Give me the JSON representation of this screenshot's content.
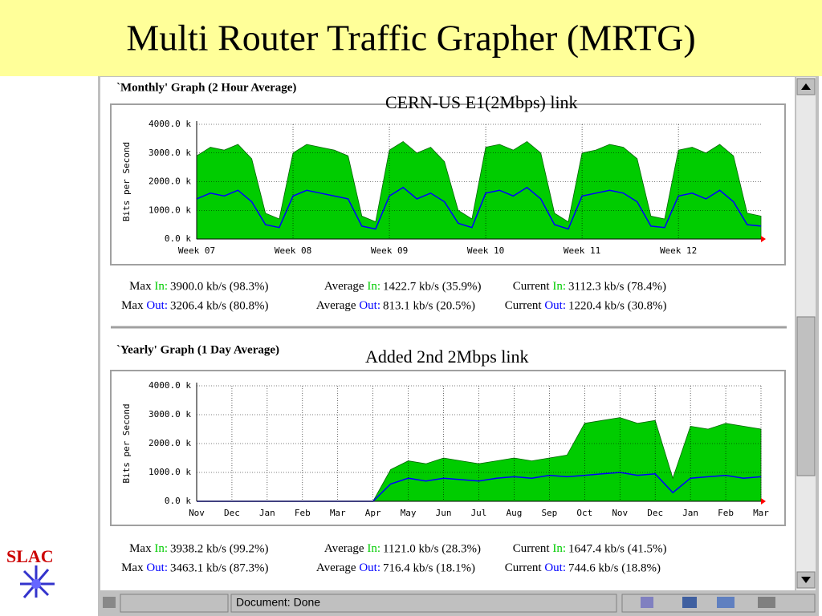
{
  "slide_title": "Multi Router Traffic Grapher (MRTG)",
  "status": "Document: Done",
  "logo": "SLAC",
  "chart_data": [
    {
      "type": "area",
      "title": "`Monthly' Graph (2 Hour Average)",
      "annotation": "CERN-US E1(2Mbps) link",
      "y_label": "Bits per Second",
      "categories": [
        "Week 07",
        null,
        null,
        null,
        null,
        null,
        null,
        "Week 08",
        null,
        null,
        null,
        null,
        null,
        null,
        "Week 09",
        null,
        null,
        null,
        null,
        null,
        null,
        "Week 10",
        null,
        null,
        null,
        null,
        null,
        null,
        "Week 11",
        null,
        null,
        null,
        null,
        null,
        null,
        "Week 12",
        null,
        null,
        null,
        null,
        null,
        null
      ],
      "series": [
        {
          "name": "In:",
          "color": "#00cc00",
          "style": "area",
          "values": [
            2900000,
            3200000,
            3100000,
            3300000,
            2800000,
            900000,
            700000,
            3000000,
            3300000,
            3200000,
            3100000,
            2900000,
            800000,
            600000,
            3100000,
            3400000,
            3000000,
            3200000,
            2700000,
            1000000,
            700000,
            3200000,
            3300000,
            3100000,
            3400000,
            3000000,
            900000,
            600000,
            3000000,
            3100000,
            3300000,
            3200000,
            2800000,
            800000,
            700000,
            3100000,
            3200000,
            3000000,
            3300000,
            2900000,
            900000,
            800000
          ]
        },
        {
          "name": "Out:",
          "color": "#0000ff",
          "style": "line",
          "values": [
            1400000,
            1600000,
            1500000,
            1700000,
            1300000,
            500000,
            400000,
            1500000,
            1700000,
            1600000,
            1500000,
            1400000,
            450000,
            350000,
            1500000,
            1800000,
            1400000,
            1600000,
            1300000,
            550000,
            400000,
            1600000,
            1700000,
            1500000,
            1800000,
            1400000,
            500000,
            350000,
            1500000,
            1600000,
            1700000,
            1600000,
            1300000,
            450000,
            400000,
            1500000,
            1600000,
            1400000,
            1700000,
            1300000,
            500000,
            450000
          ]
        }
      ],
      "ylim": [
        0,
        4000000
      ],
      "yticks": [
        {
          "value": 0,
          "label": "0.0 k"
        },
        {
          "value": 1000000,
          "label": "1000.0 k"
        },
        {
          "value": 2000000,
          "label": "2000.0 k"
        },
        {
          "value": 3000000,
          "label": "3000.0 k"
        },
        {
          "value": 4000000,
          "label": "4000.0 k"
        }
      ],
      "grid": true,
      "stats": [
        [
          {
            "label": "Max",
            "value": "3900.0 kb/s (98.3%)"
          },
          {
            "label": "Average",
            "value": "1422.7 kb/s (35.9%)"
          },
          {
            "label": "Current",
            "value": "3112.3 kb/s (78.4%)"
          }
        ],
        [
          {
            "label": "Max",
            "value": "3206.4 kb/s (80.8%)"
          },
          {
            "label": "Average",
            "value": "813.1 kb/s (20.5%)"
          },
          {
            "label": "Current",
            "value": "1220.4 kb/s (30.8%)"
          }
        ]
      ]
    },
    {
      "type": "area",
      "title": "`Yearly' Graph (1 Day Average)",
      "annotation": "Added 2nd 2Mbps link",
      "y_label": "Bits per Second",
      "categories": [
        "Nov",
        null,
        "Dec",
        null,
        "Jan",
        null,
        "Feb",
        null,
        "Mar",
        null,
        "Apr",
        null,
        "May",
        null,
        "Jun",
        null,
        "Jul",
        null,
        "Aug",
        null,
        "Sep",
        null,
        "Oct",
        null,
        "Nov",
        null,
        "Dec",
        null,
        "Jan",
        null,
        "Feb",
        null,
        "Mar"
      ],
      "series": [
        {
          "name": "In:",
          "color": "#00cc00",
          "style": "area",
          "values": [
            0,
            0,
            0,
            0,
            0,
            0,
            0,
            0,
            0,
            0,
            0,
            1100000,
            1400000,
            1300000,
            1500000,
            1400000,
            1300000,
            1400000,
            1500000,
            1400000,
            1500000,
            1600000,
            2700000,
            2800000,
            2900000,
            2700000,
            2800000,
            800000,
            2600000,
            2500000,
            2700000,
            2600000,
            2500000
          ]
        },
        {
          "name": "Out:",
          "color": "#0000ff",
          "style": "line",
          "values": [
            0,
            0,
            0,
            0,
            0,
            0,
            0,
            0,
            0,
            0,
            0,
            600000,
            800000,
            700000,
            800000,
            750000,
            700000,
            800000,
            850000,
            800000,
            900000,
            850000,
            900000,
            950000,
            1000000,
            900000,
            950000,
            300000,
            800000,
            850000,
            900000,
            800000,
            850000
          ]
        }
      ],
      "ylim": [
        0,
        4000000
      ],
      "yticks": [
        {
          "value": 0,
          "label": "0.0 k"
        },
        {
          "value": 1000000,
          "label": "1000.0 k"
        },
        {
          "value": 2000000,
          "label": "2000.0 k"
        },
        {
          "value": 3000000,
          "label": "3000.0 k"
        },
        {
          "value": 4000000,
          "label": "4000.0 k"
        }
      ],
      "grid": true,
      "stats": [
        [
          {
            "label": "Max",
            "value": "3938.2 kb/s (99.2%)"
          },
          {
            "label": "Average",
            "value": "1121.0 kb/s (28.3%)"
          },
          {
            "label": "Current",
            "value": "1647.4 kb/s (41.5%)"
          }
        ],
        [
          {
            "label": "Max",
            "value": "3463.1 kb/s (87.3%)"
          },
          {
            "label": "Average",
            "value": "716.4 kb/s (18.1%)"
          },
          {
            "label": "Current",
            "value": "744.6 kb/s (18.8%)"
          }
        ]
      ]
    }
  ]
}
